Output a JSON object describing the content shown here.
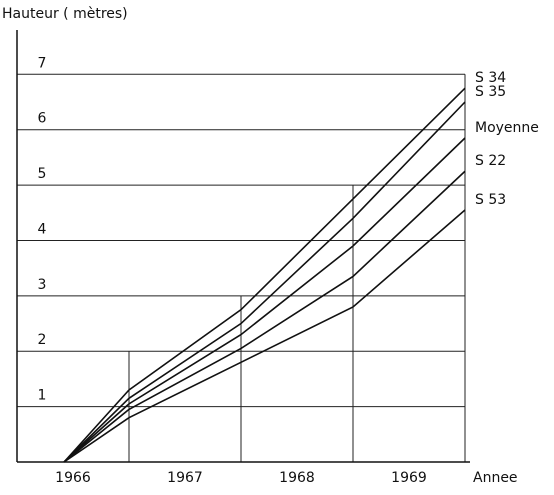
{
  "chart_data": {
    "type": "line",
    "title": "Hauteur ( mètres)",
    "x_label": "Annee",
    "x": [
      1966.42,
      1967,
      1968,
      1969,
      1970
    ],
    "series": [
      {
        "name": "S 34",
        "color": "#111111",
        "values": [
          0,
          1.3,
          2.75,
          4.75,
          6.75
        ]
      },
      {
        "name": "S 35",
        "color": "#111111",
        "values": [
          0,
          1.15,
          2.5,
          4.4,
          6.5
        ]
      },
      {
        "name": "Moyenne",
        "color": "#111111",
        "values": [
          0,
          1.05,
          2.3,
          3.9,
          5.85
        ]
      },
      {
        "name": "S 22",
        "color": "#111111",
        "values": [
          0,
          0.95,
          2.05,
          3.35,
          5.25
        ]
      },
      {
        "name": "S 53",
        "color": "#111111",
        "values": [
          0,
          0.8,
          1.8,
          2.8,
          4.55
        ]
      }
    ],
    "xlim": [
      1966,
      1970
    ],
    "xticks": [
      {
        "value": 1966.5,
        "label": "1966"
      },
      {
        "value": 1967.5,
        "label": "1967"
      },
      {
        "value": 1968.5,
        "label": "1968"
      },
      {
        "value": 1969.5,
        "label": "1969"
      }
    ],
    "ylim": [
      0,
      7.8
    ],
    "yticks": [
      1,
      2,
      3,
      4,
      5,
      6,
      7
    ],
    "grid": true
  }
}
